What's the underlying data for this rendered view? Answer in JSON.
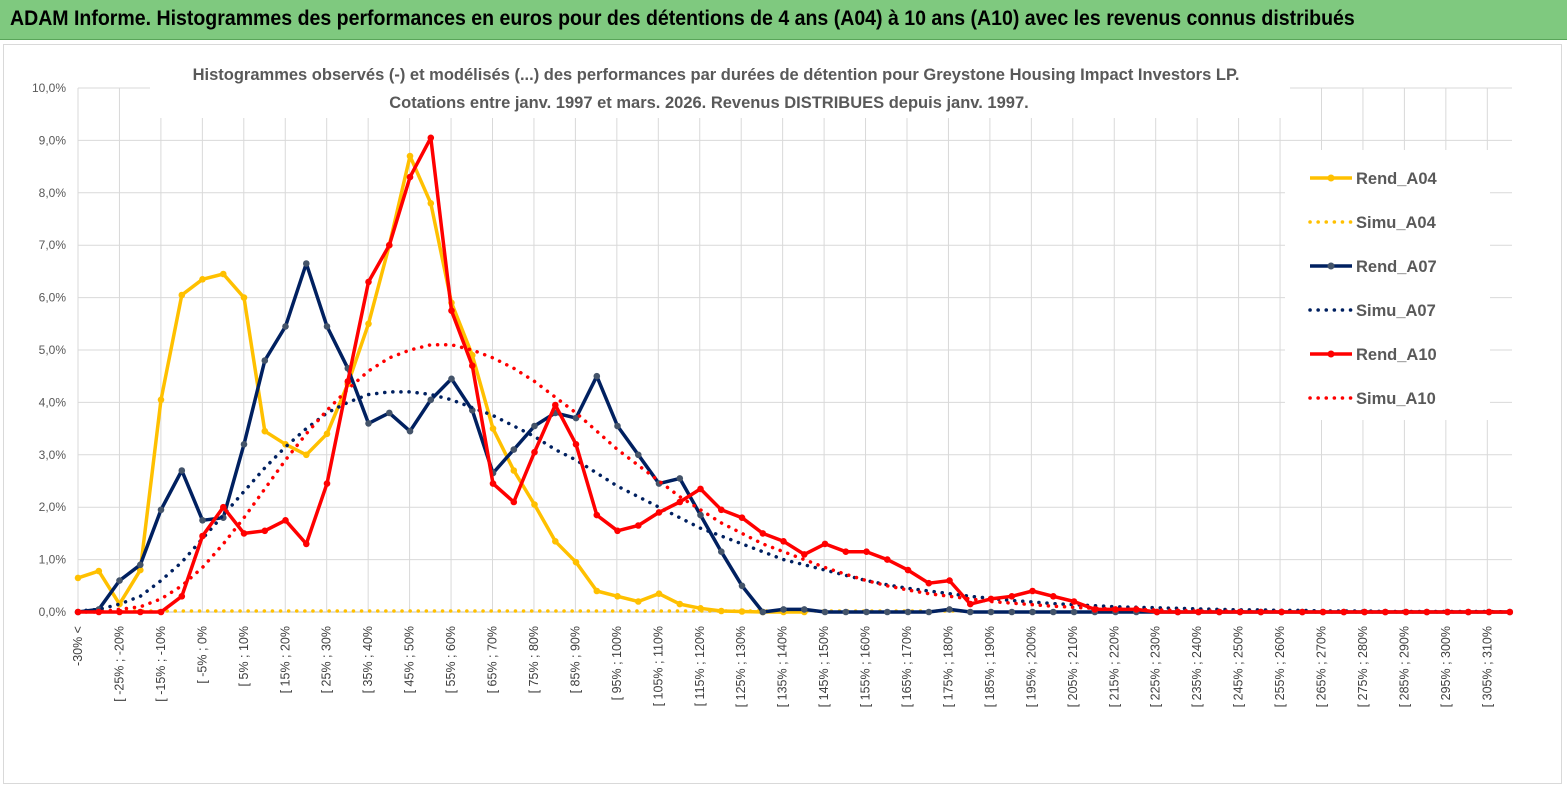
{
  "header": {
    "title": "ADAM Informe. Histogrammes des performances en euros pour des détentions de 4 ans (A04) à 10 ans (A10) avec les revenus connus distribués"
  },
  "chart_data": {
    "type": "line",
    "title": "Histogrammes observés (-) et modélisés (...) des performances par durées de détention pour Greystone Housing Impact Investors LP.",
    "subtitle": "Cotations entre janv. 1997 et mars. 2026. Revenus DISTRIBUES depuis janv. 1997.",
    "xlabel": "",
    "ylabel": "",
    "ylim": [
      0,
      10
    ],
    "y_ticks": [
      "0,0%",
      "1,0%",
      "2,0%",
      "3,0%",
      "4,0%",
      "5,0%",
      "6,0%",
      "7,0%",
      "8,0%",
      "9,0%",
      "10,0%"
    ],
    "x_tick_labels": [
      "-30% <",
      "[ -25% ; -20%",
      "[ -15% ; -10%",
      "[ -5% ; 0%",
      "[ 5% ; 10%",
      "[ 15% ; 20%",
      "[ 25% ; 30%",
      "[ 35% ; 40%",
      "[ 45% ; 50%",
      "[ 55% ; 60%",
      "[ 65% ; 70%",
      "[ 75% ; 80%",
      "[ 85% ; 90%",
      "[ 95% ; 100%",
      "[ 105% ; 110%",
      "[ 115% ; 120%",
      "[ 125% ; 130%",
      "[ 135% ; 140%",
      "[ 145% ; 150%",
      "[ 155% ; 160%",
      "[ 165% ; 170%",
      "[ 175% ; 180%",
      "[ 185% ; 190%",
      "[ 195% ; 200%",
      "[ 205% ; 210%",
      "[ 215% ; 220%",
      "[ 225% ; 230%",
      "[ 235% ; 240%",
      "[ 245% ; 250%",
      "[ 255% ; 260%",
      "[ 265% ; 270%",
      "[ 275% ; 280%",
      "[ 285% ; 290%",
      "[ 295% ; 300%",
      "[ 305% ; 310%"
    ],
    "grid": true,
    "legend_position": "right",
    "series": [
      {
        "name": "Rend_A04",
        "style": "solid-markers",
        "color": "#ffc000",
        "values": [
          0.65,
          0.78,
          0.15,
          0.8,
          4.05,
          6.05,
          6.35,
          6.45,
          6.0,
          3.45,
          3.2,
          3.0,
          3.4,
          4.35,
          5.5,
          7.0,
          8.7,
          7.8,
          5.9,
          4.9,
          3.5,
          2.7,
          2.05,
          1.35,
          0.95,
          0.4,
          0.3,
          0.2,
          0.35,
          0.15,
          0.07,
          0.02,
          0.01,
          0.0,
          0.0,
          0.0
        ]
      },
      {
        "name": "Simu_A04",
        "style": "dotted",
        "color": "#ffc000",
        "values": [
          0.02,
          0.02,
          0.02,
          0.02,
          0.02,
          0.02,
          0.02,
          0.02,
          0.02,
          0.02,
          0.02,
          0.02,
          0.02,
          0.02,
          0.02,
          0.02,
          0.02,
          0.02,
          0.02,
          0.02,
          0.02,
          0.02,
          0.02,
          0.02,
          0.02,
          0.02,
          0.02,
          0.02,
          0.02,
          0.02,
          0.02,
          0.02,
          0.02,
          0.02,
          0.02,
          0.02,
          0.02,
          0.02,
          0.02,
          0.02,
          0.02,
          0.02,
          0.02,
          0.02
        ]
      },
      {
        "name": "Rend_A07",
        "style": "solid-markers",
        "color": "#002060",
        "values": [
          0.0,
          0.05,
          0.6,
          0.9,
          1.95,
          2.7,
          1.75,
          1.8,
          3.2,
          4.8,
          5.45,
          6.65,
          5.45,
          4.65,
          3.6,
          3.8,
          3.45,
          4.05,
          4.45,
          3.85,
          2.65,
          3.1,
          3.55,
          3.8,
          3.7,
          4.5,
          3.55,
          3.0,
          2.45,
          2.55,
          1.85,
          1.15,
          0.5,
          0.0,
          0.05,
          0.05,
          0.0,
          0.0,
          0.0,
          0.0,
          0.0,
          0.0,
          0.05,
          0.0,
          0.0,
          0.0,
          0.0,
          0.0,
          0.0,
          0.0,
          0.0,
          0.0,
          0.0,
          0.0,
          0.0,
          0.0,
          0.0,
          0.0,
          0.0,
          0.0,
          0.0,
          0.0,
          0.0,
          0.0,
          0.0,
          0.0,
          0.0,
          0.0,
          0.0,
          0.0
        ]
      },
      {
        "name": "Simu_A07",
        "style": "dotted",
        "color": "#002060",
        "values": [
          0.02,
          0.05,
          0.15,
          0.3,
          0.6,
          0.95,
          1.4,
          1.85,
          2.3,
          2.75,
          3.15,
          3.5,
          3.8,
          4.0,
          4.15,
          4.2,
          4.2,
          4.15,
          4.05,
          3.9,
          3.75,
          3.55,
          3.35,
          3.1,
          2.9,
          2.65,
          2.4,
          2.2,
          2.0,
          1.8,
          1.6,
          1.45,
          1.3,
          1.15,
          1.0,
          0.9,
          0.8,
          0.7,
          0.6,
          0.52,
          0.45,
          0.4,
          0.35,
          0.3,
          0.26,
          0.22,
          0.19,
          0.16,
          0.14,
          0.12,
          0.1,
          0.09,
          0.08,
          0.07,
          0.06,
          0.05,
          0.04,
          0.04,
          0.03,
          0.03,
          0.02,
          0.02,
          0.02,
          0.01,
          0.01,
          0.01,
          0.01,
          0.01,
          0.01,
          0.0
        ]
      },
      {
        "name": "Rend_A10",
        "style": "solid-markers",
        "color": "#ff0000",
        "values": [
          0.0,
          0.0,
          0.0,
          0.0,
          0.0,
          0.3,
          1.45,
          2.0,
          1.5,
          1.55,
          1.75,
          1.3,
          2.45,
          4.4,
          6.3,
          7.0,
          8.3,
          9.05,
          5.75,
          4.7,
          2.45,
          2.1,
          3.05,
          3.95,
          3.2,
          1.85,
          1.55,
          1.65,
          1.9,
          2.1,
          2.35,
          1.95,
          1.8,
          1.5,
          1.35,
          1.1,
          1.3,
          1.15,
          1.15,
          1.0,
          0.8,
          0.55,
          0.6,
          0.15,
          0.25,
          0.3,
          0.4,
          0.3,
          0.2,
          0.05,
          0.05,
          0.05,
          0.0,
          0.0,
          0.0,
          0.0,
          0.0,
          0.0,
          0.0,
          0.0,
          0.0,
          0.0,
          0.0,
          0.0,
          0.0,
          0.0,
          0.0,
          0.0,
          0.0,
          0.0
        ]
      },
      {
        "name": "Simu_A10",
        "style": "dotted",
        "color": "#ff0000",
        "values": [
          0.0,
          0.0,
          0.05,
          0.1,
          0.25,
          0.5,
          0.85,
          1.3,
          1.8,
          2.35,
          2.9,
          3.4,
          3.85,
          4.25,
          4.6,
          4.85,
          5.0,
          5.1,
          5.1,
          5.0,
          4.85,
          4.65,
          4.4,
          4.1,
          3.8,
          3.45,
          3.1,
          2.8,
          2.5,
          2.2,
          1.95,
          1.7,
          1.5,
          1.3,
          1.15,
          1.0,
          0.85,
          0.72,
          0.6,
          0.5,
          0.42,
          0.35,
          0.3,
          0.25,
          0.2,
          0.17,
          0.14,
          0.11,
          0.09,
          0.07,
          0.06,
          0.05,
          0.04,
          0.03,
          0.02,
          0.02,
          0.01,
          0.01,
          0.01,
          0.0,
          0.0,
          0.0,
          0.0,
          0.0,
          0.0,
          0.0,
          0.0,
          0.0,
          0.0,
          0.0
        ]
      }
    ]
  }
}
